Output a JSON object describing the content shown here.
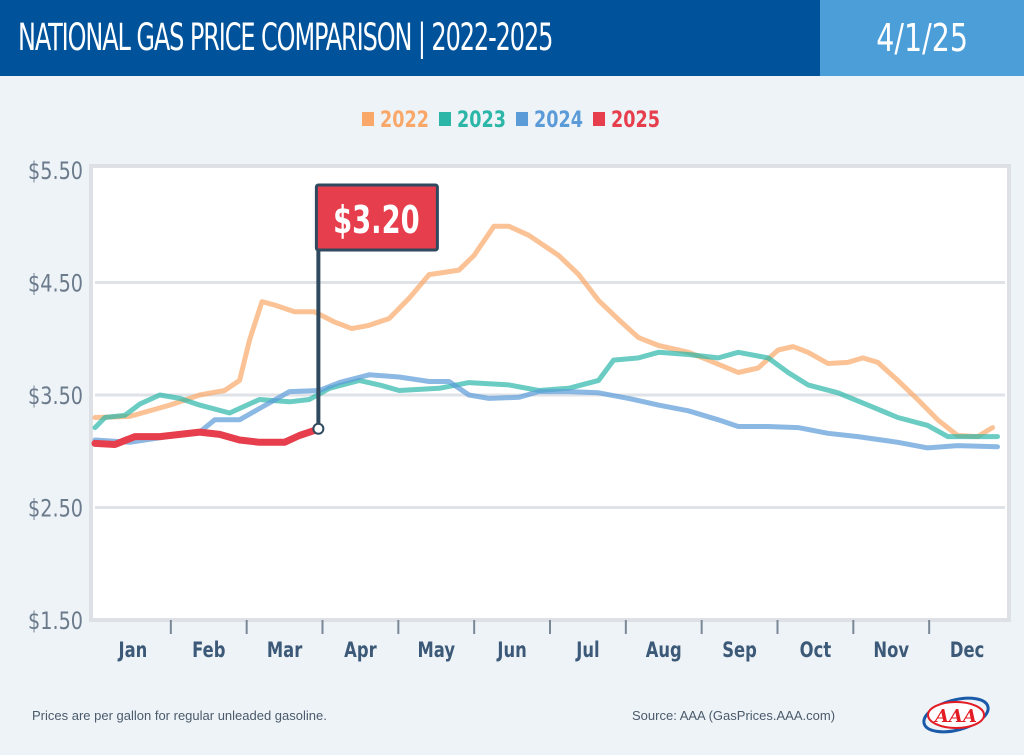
{
  "header": {
    "title": "NATIONAL GAS PRICE COMPARISON | 2022-2025",
    "date": "4/1/25"
  },
  "footer": {
    "note": "Prices are per gallon for regular unleaded gasoline.",
    "source": "Source: AAA (GasPrices.AAA.com)",
    "logo_text": "AAA"
  },
  "chart_data": {
    "type": "line",
    "title": "NATIONAL GAS PRICE COMPARISON | 2022-2025",
    "ylim": [
      1.5,
      5.5
    ],
    "yticks": [
      "$5.50",
      "$4.50",
      "$3.50",
      "$2.50",
      "$1.50"
    ],
    "ytick_values": [
      5.5,
      4.5,
      3.5,
      2.5,
      1.5
    ],
    "xticks": [
      "Jan",
      "Feb",
      "Mar",
      "Apr",
      "May",
      "Jun",
      "Jul",
      "Aug",
      "Sep",
      "Oct",
      "Nov",
      "Dec"
    ],
    "grid": true,
    "legend": "top-center",
    "annotation": {
      "label": "$3.20",
      "date": "04-01",
      "value": 3.2,
      "color": "#e63e4c"
    },
    "series": [
      {
        "name": "2022",
        "color": "#f9a86a",
        "points": [
          [
            "01-01",
            3.3
          ],
          [
            "01-15",
            3.31
          ],
          [
            "01-31",
            3.41
          ],
          [
            "02-12",
            3.5
          ],
          [
            "02-22",
            3.54
          ],
          [
            "02-28",
            3.63
          ],
          [
            "03-04",
            3.99
          ],
          [
            "03-09",
            4.33
          ],
          [
            "03-14",
            4.3
          ],
          [
            "03-22",
            4.24
          ],
          [
            "03-30",
            4.24
          ],
          [
            "04-07",
            4.15
          ],
          [
            "04-14",
            4.09
          ],
          [
            "04-21",
            4.12
          ],
          [
            "04-29",
            4.18
          ],
          [
            "05-07",
            4.36
          ],
          [
            "05-15",
            4.57
          ],
          [
            "05-27",
            4.61
          ],
          [
            "06-02",
            4.74
          ],
          [
            "06-10",
            5.0
          ],
          [
            "06-16",
            5.0
          ],
          [
            "06-24",
            4.92
          ],
          [
            "07-06",
            4.74
          ],
          [
            "07-14",
            4.57
          ],
          [
            "07-22",
            4.34
          ],
          [
            "07-30",
            4.17
          ],
          [
            "08-07",
            4.01
          ],
          [
            "08-15",
            3.94
          ],
          [
            "08-27",
            3.88
          ],
          [
            "09-04",
            3.81
          ],
          [
            "09-16",
            3.7
          ],
          [
            "09-24",
            3.74
          ],
          [
            "10-02",
            3.9
          ],
          [
            "10-08",
            3.93
          ],
          [
            "10-14",
            3.88
          ],
          [
            "10-22",
            3.78
          ],
          [
            "10-30",
            3.79
          ],
          [
            "11-05",
            3.83
          ],
          [
            "11-11",
            3.79
          ],
          [
            "11-19",
            3.63
          ],
          [
            "11-27",
            3.46
          ],
          [
            "12-05",
            3.28
          ],
          [
            "12-13",
            3.14
          ],
          [
            "12-21",
            3.13
          ],
          [
            "12-27",
            3.21
          ]
        ]
      },
      {
        "name": "2023",
        "color": "#2bb6a8",
        "points": [
          [
            "01-01",
            3.21
          ],
          [
            "01-05",
            3.3
          ],
          [
            "01-13",
            3.32
          ],
          [
            "01-19",
            3.42
          ],
          [
            "01-27",
            3.5
          ],
          [
            "02-04",
            3.47
          ],
          [
            "02-12",
            3.41
          ],
          [
            "02-24",
            3.34
          ],
          [
            "03-08",
            3.46
          ],
          [
            "03-20",
            3.44
          ],
          [
            "03-28",
            3.46
          ],
          [
            "04-05",
            3.56
          ],
          [
            "04-17",
            3.63
          ],
          [
            "04-25",
            3.59
          ],
          [
            "05-03",
            3.54
          ],
          [
            "05-19",
            3.56
          ],
          [
            "05-31",
            3.61
          ],
          [
            "06-16",
            3.59
          ],
          [
            "06-28",
            3.54
          ],
          [
            "07-10",
            3.56
          ],
          [
            "07-22",
            3.63
          ],
          [
            "07-28",
            3.81
          ],
          [
            "08-07",
            3.83
          ],
          [
            "08-15",
            3.88
          ],
          [
            "08-27",
            3.86
          ],
          [
            "09-08",
            3.83
          ],
          [
            "09-16",
            3.88
          ],
          [
            "09-28",
            3.83
          ],
          [
            "10-06",
            3.7
          ],
          [
            "10-14",
            3.59
          ],
          [
            "10-26",
            3.52
          ],
          [
            "11-07",
            3.41
          ],
          [
            "11-19",
            3.3
          ],
          [
            "12-01",
            3.23
          ],
          [
            "12-09",
            3.13
          ],
          [
            "12-17",
            3.13
          ],
          [
            "12-29",
            3.13
          ]
        ]
      },
      {
        "name": "2024",
        "color": "#5b9bd8",
        "points": [
          [
            "01-01",
            3.1
          ],
          [
            "01-15",
            3.08
          ],
          [
            "01-27",
            3.12
          ],
          [
            "02-12",
            3.17
          ],
          [
            "02-18",
            3.28
          ],
          [
            "02-28",
            3.28
          ],
          [
            "03-08",
            3.38
          ],
          [
            "03-20",
            3.53
          ],
          [
            "04-01",
            3.54
          ],
          [
            "04-09",
            3.61
          ],
          [
            "04-21",
            3.68
          ],
          [
            "05-03",
            3.66
          ],
          [
            "05-15",
            3.62
          ],
          [
            "05-23",
            3.62
          ],
          [
            "05-31",
            3.5
          ],
          [
            "06-08",
            3.47
          ],
          [
            "06-20",
            3.48
          ],
          [
            "06-28",
            3.53
          ],
          [
            "07-10",
            3.53
          ],
          [
            "07-22",
            3.52
          ],
          [
            "08-03",
            3.47
          ],
          [
            "08-15",
            3.41
          ],
          [
            "08-27",
            3.36
          ],
          [
            "09-08",
            3.28
          ],
          [
            "09-16",
            3.22
          ],
          [
            "09-28",
            3.22
          ],
          [
            "10-10",
            3.21
          ],
          [
            "10-22",
            3.16
          ],
          [
            "11-03",
            3.13
          ],
          [
            "11-19",
            3.08
          ],
          [
            "12-01",
            3.03
          ],
          [
            "12-13",
            3.05
          ],
          [
            "12-29",
            3.04
          ]
        ]
      },
      {
        "name": "2025",
        "color": "#e63e4c",
        "points": [
          [
            "01-01",
            3.07
          ],
          [
            "01-09",
            3.06
          ],
          [
            "01-17",
            3.13
          ],
          [
            "01-27",
            3.13
          ],
          [
            "02-04",
            3.15
          ],
          [
            "02-12",
            3.17
          ],
          [
            "02-20",
            3.15
          ],
          [
            "02-28",
            3.1
          ],
          [
            "03-08",
            3.08
          ],
          [
            "03-18",
            3.08
          ],
          [
            "03-24",
            3.14
          ],
          [
            "04-01",
            3.2
          ]
        ]
      }
    ]
  }
}
